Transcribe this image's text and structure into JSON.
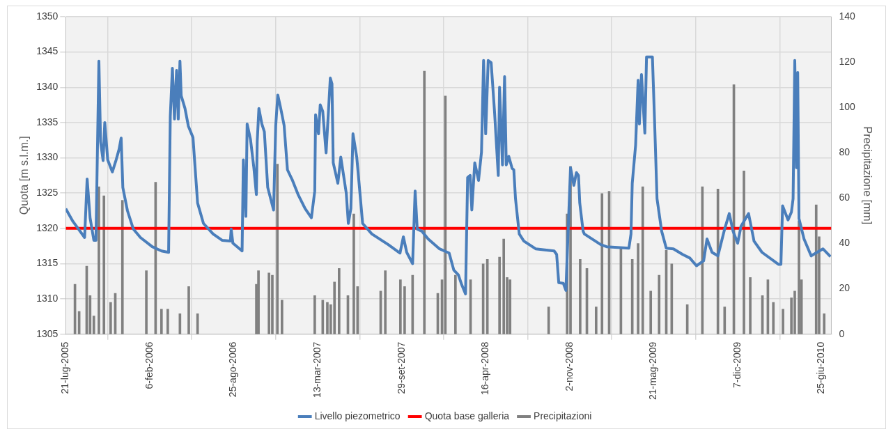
{
  "chart_data": {
    "type": "line",
    "ylabel": "Quota [m s.l.m.]",
    "y2label": "Precipitazione [mm]",
    "grid": true,
    "legend": "bottom",
    "xlim": [
      "2005-07-21",
      "2010-07-18"
    ],
    "xticks": [
      {
        "value": "2005-07-21",
        "label": "21-lug-2005"
      },
      {
        "value": "2006-02-06",
        "label": "6-feb-2006"
      },
      {
        "value": "2006-08-25",
        "label": "25-ago-2006"
      },
      {
        "value": "2007-03-13",
        "label": "13-mar-2007"
      },
      {
        "value": "2007-09-29",
        "label": "29-set-2007"
      },
      {
        "value": "2008-04-16",
        "label": "16-apr-2008"
      },
      {
        "value": "2008-11-02",
        "label": "2-nov-2008"
      },
      {
        "value": "2009-05-21",
        "label": "21-mag-2009"
      },
      {
        "value": "2009-12-07",
        "label": "7-dic-2009"
      },
      {
        "value": "2010-06-25",
        "label": "25-giu-2010"
      }
    ],
    "ylim": [
      1305,
      1350
    ],
    "yticks": [
      1305,
      1310,
      1315,
      1320,
      1325,
      1330,
      1335,
      1340,
      1345,
      1350
    ],
    "y2lim": [
      0,
      140
    ],
    "y2ticks": [
      0,
      20,
      40,
      60,
      80,
      100,
      120,
      140
    ],
    "series": [
      {
        "name": "Livello piezometrico",
        "color": "#4a7ebb",
        "x": [
          "2005-07-21",
          "2005-08-07",
          "2005-09-04",
          "2005-09-10",
          "2005-09-17",
          "2005-09-26",
          "2005-10-01",
          "2005-10-08",
          "2005-10-12",
          "2005-10-18",
          "2005-10-22",
          "2005-10-29",
          "2005-11-09",
          "2005-11-18",
          "2005-11-25",
          "2005-11-30",
          "2005-12-04",
          "2005-12-15",
          "2005-12-29",
          "2006-01-15",
          "2006-02-12",
          "2006-03-06",
          "2006-03-23",
          "2006-03-27",
          "2006-04-01",
          "2006-04-06",
          "2006-04-11",
          "2006-04-15",
          "2006-04-19",
          "2006-04-22",
          "2006-05-01",
          "2006-05-09",
          "2006-05-20",
          "2006-05-31",
          "2006-06-14",
          "2006-07-07",
          "2006-07-29",
          "2006-08-17",
          "2006-08-19",
          "2006-08-23",
          "2006-09-14",
          "2006-09-17",
          "2006-09-23",
          "2006-09-26",
          "2006-10-04",
          "2006-10-12",
          "2006-10-18",
          "2006-10-20",
          "2006-10-24",
          "2006-10-31",
          "2006-11-06",
          "2006-11-14",
          "2006-11-28",
          "2006-12-03",
          "2006-12-08",
          "2006-12-15",
          "2006-12-23",
          "2006-12-31",
          "2007-01-12",
          "2007-01-26",
          "2007-02-11",
          "2007-02-26",
          "2007-03-06",
          "2007-03-08",
          "2007-03-15",
          "2007-03-19",
          "2007-03-25",
          "2007-04-02",
          "2007-04-08",
          "2007-04-12",
          "2007-04-16",
          "2007-04-19",
          "2007-04-30",
          "2007-05-07",
          "2007-05-20",
          "2007-05-25",
          "2007-05-31",
          "2007-06-05",
          "2007-06-14",
          "2007-06-28",
          "2007-07-20",
          "2007-08-28",
          "2007-09-25",
          "2007-10-03",
          "2007-10-11",
          "2007-10-25",
          "2007-10-31",
          "2007-11-05",
          "2007-11-16",
          "2007-12-01",
          "2007-12-28",
          "2008-01-20",
          "2008-01-31",
          "2008-02-11",
          "2008-02-19",
          "2008-02-28",
          "2008-03-04",
          "2008-03-10",
          "2008-03-14",
          "2008-03-21",
          "2008-03-30",
          "2008-04-06",
          "2008-04-11",
          "2008-04-16",
          "2008-04-22",
          "2008-04-29",
          "2008-05-07",
          "2008-05-16",
          "2008-05-19",
          "2008-05-26",
          "2008-05-31",
          "2008-06-04",
          "2008-06-10",
          "2008-06-18",
          "2008-06-22",
          "2008-06-26",
          "2008-07-05",
          "2008-07-16",
          "2008-08-13",
          "2008-09-26",
          "2008-10-02",
          "2008-10-07",
          "2008-10-18",
          "2008-10-24",
          "2008-11-04",
          "2008-11-12",
          "2008-11-18",
          "2008-11-23",
          "2008-11-26",
          "2008-12-04",
          "2008-12-07",
          "2009-01-15",
          "2009-01-29",
          "2009-03-23",
          "2009-03-28",
          "2009-03-31",
          "2009-04-08",
          "2009-04-14",
          "2009-04-17",
          "2009-04-22",
          "2009-04-30",
          "2009-05-04",
          "2009-05-18",
          "2009-05-23",
          "2009-05-29",
          "2009-06-09",
          "2009-06-20",
          "2009-07-07",
          "2009-07-29",
          "2009-08-15",
          "2009-08-31",
          "2009-09-17",
          "2009-09-25",
          "2009-10-07",
          "2009-10-21",
          "2009-11-06",
          "2009-11-17",
          "2009-11-26",
          "2009-12-07",
          "2009-12-15",
          "2010-01-02",
          "2010-01-15",
          "2010-02-03",
          "2010-03-14",
          "2010-03-20",
          "2010-03-24",
          "2010-04-06",
          "2010-04-14",
          "2010-04-18",
          "2010-04-22",
          "2010-04-26",
          "2010-04-29",
          "2010-05-02",
          "2010-05-14",
          "2010-05-31",
          "2010-06-28",
          "2010-07-16"
        ],
        "values": [
          1322.8,
          1321.0,
          1318.7,
          1327.0,
          1321.5,
          1318.3,
          1318.3,
          1343.7,
          1332.3,
          1329.6,
          1335.0,
          1329.7,
          1328.0,
          1329.7,
          1331.2,
          1332.8,
          1325.8,
          1322.5,
          1319.9,
          1318.7,
          1317.4,
          1316.8,
          1316.6,
          1335.9,
          1342.7,
          1335.5,
          1342.4,
          1335.5,
          1343.7,
          1338.8,
          1337.0,
          1334.5,
          1332.9,
          1323.6,
          1320.7,
          1319.2,
          1318.3,
          1318.2,
          1319.9,
          1317.9,
          1316.8,
          1329.7,
          1321.7,
          1334.8,
          1332.6,
          1328.6,
          1324.8,
          1332.3,
          1337.0,
          1334.8,
          1333.7,
          1325.8,
          1322.6,
          1334.5,
          1338.9,
          1337.0,
          1334.6,
          1328.3,
          1326.8,
          1324.7,
          1322.8,
          1321.5,
          1325.3,
          1336.1,
          1333.4,
          1337.5,
          1336.6,
          1330.7,
          1337.0,
          1341.3,
          1340.5,
          1329.3,
          1326.4,
          1330.1,
          1325.0,
          1320.7,
          1322.8,
          1333.4,
          1330.1,
          1320.7,
          1319.2,
          1317.7,
          1316.5,
          1318.8,
          1316.6,
          1315.0,
          1325.3,
          1319.9,
          1319.6,
          1318.5,
          1317.1,
          1316.5,
          1314.1,
          1313.4,
          1312.0,
          1310.7,
          1327.2,
          1327.5,
          1322.6,
          1329.3,
          1326.8,
          1330.8,
          1343.8,
          1333.4,
          1343.8,
          1343.5,
          1336.6,
          1327.5,
          1340.0,
          1329.0,
          1341.5,
          1329.0,
          1330.2,
          1328.5,
          1328.3,
          1324.2,
          1319.2,
          1318.2,
          1317.1,
          1316.8,
          1316.3,
          1312.3,
          1312.2,
          1311.2,
          1328.6,
          1326.1,
          1327.9,
          1327.5,
          1323.6,
          1319.6,
          1319.2,
          1317.7,
          1317.4,
          1317.2,
          1319.2,
          1326.4,
          1331.8,
          1341.0,
          1334.8,
          1341.8,
          1333.5,
          1344.3,
          1344.3,
          1335.5,
          1324.2,
          1319.6,
          1317.2,
          1317.1,
          1316.3,
          1315.8,
          1314.7,
          1315.4,
          1318.5,
          1316.6,
          1316.1,
          1319.9,
          1322.1,
          1319.6,
          1317.9,
          1320.3,
          1322.1,
          1318.2,
          1316.6,
          1314.9,
          1314.9,
          1323.2,
          1321.2,
          1322.3,
          1324.2,
          1343.8,
          1328.6,
          1342.1,
          1321.4,
          1318.5,
          1316.1,
          1317.1,
          1316.0
        ]
      },
      {
        "name": "Quota base galleria",
        "color": "#ff0000",
        "x": [
          "2005-07-21",
          "2010-07-18"
        ],
        "values": [
          1320,
          1320
        ]
      },
      {
        "name": "Precipitazioni",
        "type": "bar",
        "axis": "y2",
        "color": "#808080",
        "x": [
          "2005-08-12",
          "2005-08-22",
          "2005-09-09",
          "2005-09-17",
          "2005-09-26",
          "2005-10-08",
          "2005-10-20",
          "2005-11-05",
          "2005-11-16",
          "2005-12-03",
          "2006-01-29",
          "2006-02-20",
          "2006-03-06",
          "2006-03-21",
          "2006-04-19",
          "2006-05-10",
          "2006-05-31",
          "2006-10-18",
          "2006-10-23",
          "2006-11-17",
          "2006-11-25",
          "2006-12-07",
          "2006-12-18",
          "2007-03-06",
          "2007-03-25",
          "2007-04-05",
          "2007-04-13",
          "2007-04-22",
          "2007-05-03",
          "2007-05-24",
          "2007-06-07",
          "2007-06-16",
          "2007-08-10",
          "2007-08-21",
          "2007-09-26",
          "2007-10-06",
          "2007-10-25",
          "2007-11-22",
          "2007-12-24",
          "2008-01-03",
          "2008-01-11",
          "2008-02-04",
          "2008-03-11",
          "2008-04-10",
          "2008-04-20",
          "2008-05-19",
          "2008-05-29",
          "2008-06-06",
          "2008-06-13",
          "2008-09-13",
          "2008-10-27",
          "2008-11-04",
          "2008-11-27",
          "2008-12-13",
          "2009-01-04",
          "2009-01-18",
          "2009-02-04",
          "2009-03-04",
          "2009-03-31",
          "2009-04-14",
          "2009-04-25",
          "2009-05-14",
          "2009-06-03",
          "2009-06-20",
          "2009-07-03",
          "2009-08-09",
          "2009-09-14",
          "2009-10-21",
          "2009-11-06",
          "2009-11-28",
          "2009-12-22",
          "2010-01-06",
          "2010-02-04",
          "2010-02-17",
          "2010-03-02",
          "2010-03-25",
          "2010-04-14",
          "2010-04-22",
          "2010-05-02",
          "2010-05-08",
          "2010-06-12",
          "2010-06-19",
          "2010-07-01"
        ],
        "values": [
          22,
          10,
          30,
          17,
          8,
          65,
          61,
          14,
          18,
          59,
          28,
          67,
          11,
          11,
          9,
          21,
          9,
          22,
          28,
          27,
          26,
          75,
          15,
          17,
          15,
          14,
          13,
          23,
          29,
          17,
          53,
          21,
          19,
          28,
          24,
          21,
          26,
          116,
          18,
          24,
          105,
          26,
          24,
          31,
          33,
          34,
          42,
          25,
          24,
          12,
          53,
          74,
          33,
          29,
          12,
          62,
          63,
          38,
          33,
          40,
          65,
          19,
          26,
          37,
          31,
          13,
          65,
          64,
          12,
          110,
          72,
          25,
          17,
          24,
          14,
          11,
          16,
          19,
          50,
          24,
          57,
          43,
          9
        ]
      }
    ]
  }
}
